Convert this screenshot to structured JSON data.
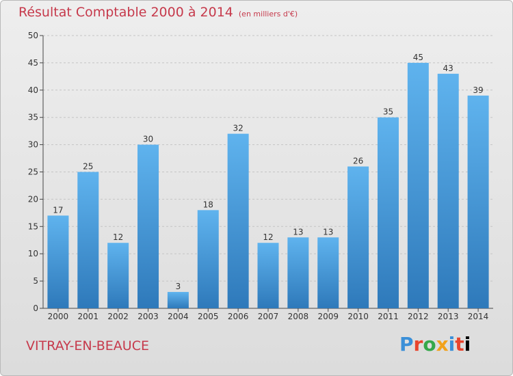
{
  "header": {
    "title": "Résultat Comptable 2000 à 2014",
    "subtitle": "(en milliers d'€)"
  },
  "footer": {
    "commune": "VITRAY-EN-BEAUCE",
    "logo_letters": [
      "P",
      "r",
      "o",
      "x",
      "i",
      "t",
      "i"
    ]
  },
  "colors": {
    "title": "#c6394b",
    "bar_top": "#5fb3ee",
    "bar_bottom": "#2e79ba",
    "grid": "#c4c4c4",
    "axis": "#444444"
  },
  "chart_data": {
    "type": "bar",
    "title": "Résultat Comptable 2000 à 2014",
    "subtitle": "(en milliers d'€)",
    "categories": [
      "2000",
      "2001",
      "2002",
      "2003",
      "2004",
      "2005",
      "2006",
      "2007",
      "2008",
      "2009",
      "2010",
      "2011",
      "2012",
      "2013",
      "2014"
    ],
    "values": [
      17,
      25,
      12,
      30,
      3,
      18,
      32,
      12,
      13,
      13,
      26,
      35,
      45,
      43,
      39
    ],
    "ylim": [
      0,
      50
    ],
    "yticks": [
      0,
      5,
      10,
      15,
      20,
      25,
      30,
      35,
      40,
      45,
      50
    ],
    "grid": true,
    "data_labels": true
  }
}
